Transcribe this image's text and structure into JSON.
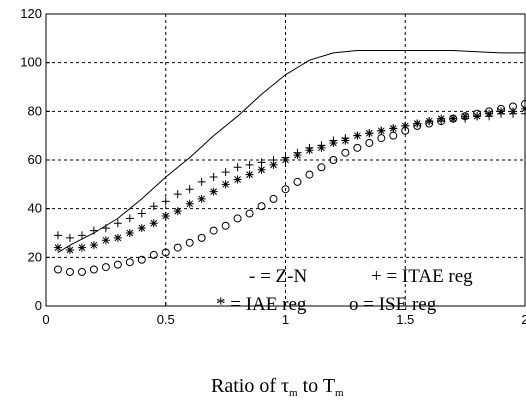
{
  "chart_data": {
    "type": "line",
    "xlabel": {
      "prefix": "Ratio of ",
      "tau": "τ",
      "sub_m1": "m",
      "mid": " to ",
      "T": "T",
      "sub_m2": "m"
    },
    "xlim": [
      0,
      2
    ],
    "ylim": [
      0,
      120
    ],
    "xticks": [
      "0",
      "0.5",
      "1",
      "1.5",
      "2"
    ],
    "yticks": [
      "0",
      "20",
      "40",
      "60",
      "80",
      "100",
      "120"
    ],
    "grid": true,
    "legend_text": {
      "zn": "-  = Z-N",
      "itae": "+ = ITAE reg",
      "iae": "*  =  IAE reg",
      "ise": "o = ISE reg"
    },
    "series": [
      {
        "name": "Z-N",
        "marker": "line",
        "x": [
          0.05,
          0.1,
          0.2,
          0.3,
          0.4,
          0.5,
          0.6,
          0.7,
          0.8,
          0.9,
          1.0,
          1.05,
          1.1,
          1.2,
          1.3,
          1.4,
          1.5,
          1.6,
          1.7,
          1.8,
          1.9,
          2.0
        ],
        "values": [
          22,
          25,
          30,
          36,
          44,
          53,
          61,
          70,
          78,
          87,
          95,
          98,
          101,
          104,
          105,
          105,
          105,
          105,
          105,
          104.5,
          104,
          104
        ]
      },
      {
        "name": "ITAE reg",
        "marker": "plus",
        "x": [
          0.05,
          0.1,
          0.15,
          0.2,
          0.25,
          0.3,
          0.35,
          0.4,
          0.45,
          0.5,
          0.55,
          0.6,
          0.65,
          0.7,
          0.75,
          0.8,
          0.85,
          0.9,
          0.95,
          1.0,
          1.05,
          1.1,
          1.15,
          1.2,
          1.25,
          1.3,
          1.35,
          1.4,
          1.45,
          1.5,
          1.55,
          1.6,
          1.65,
          1.7,
          1.75,
          1.8,
          1.85,
          1.9,
          1.95,
          2.0
        ],
        "values": [
          29,
          28,
          29,
          31,
          32,
          34,
          36,
          38,
          41,
          43,
          46,
          48,
          51,
          53,
          55,
          57,
          58,
          59,
          60,
          61,
          63,
          65,
          66,
          68,
          69,
          70,
          71,
          72,
          73,
          74,
          75,
          76,
          76,
          77,
          77,
          78,
          78,
          79,
          79,
          79
        ]
      },
      {
        "name": "IAE reg",
        "marker": "star",
        "x": [
          0.05,
          0.1,
          0.15,
          0.2,
          0.25,
          0.3,
          0.35,
          0.4,
          0.45,
          0.5,
          0.55,
          0.6,
          0.65,
          0.7,
          0.75,
          0.8,
          0.85,
          0.9,
          0.95,
          1.0,
          1.05,
          1.1,
          1.15,
          1.2,
          1.25,
          1.3,
          1.35,
          1.4,
          1.45,
          1.5,
          1.55,
          1.6,
          1.65,
          1.7,
          1.75,
          1.8,
          1.85,
          1.9,
          1.95,
          2.0
        ],
        "values": [
          24,
          23,
          24,
          25,
          27,
          28,
          30,
          32,
          34,
          37,
          39,
          42,
          44,
          47,
          50,
          52,
          54,
          56,
          58,
          60,
          62,
          64,
          65,
          67,
          68,
          70,
          71,
          72,
          73,
          74,
          75,
          76,
          77,
          77,
          78,
          78,
          79,
          80,
          80,
          81
        ]
      },
      {
        "name": "ISE reg",
        "marker": "circle",
        "x": [
          0.05,
          0.1,
          0.15,
          0.2,
          0.25,
          0.3,
          0.35,
          0.4,
          0.45,
          0.5,
          0.55,
          0.6,
          0.65,
          0.7,
          0.75,
          0.8,
          0.85,
          0.9,
          0.95,
          1.0,
          1.05,
          1.1,
          1.15,
          1.2,
          1.25,
          1.3,
          1.35,
          1.4,
          1.45,
          1.5,
          1.55,
          1.6,
          1.65,
          1.7,
          1.75,
          1.8,
          1.85,
          1.9,
          1.95,
          2.0
        ],
        "values": [
          15,
          14,
          14,
          15,
          16,
          17,
          18,
          19,
          21,
          22,
          24,
          26,
          28,
          31,
          33,
          36,
          38,
          41,
          44,
          48,
          51,
          54,
          57,
          60,
          63,
          65,
          67,
          69,
          70,
          72,
          74,
          75,
          76,
          77,
          78,
          79,
          80,
          81,
          82,
          83
        ]
      }
    ]
  }
}
